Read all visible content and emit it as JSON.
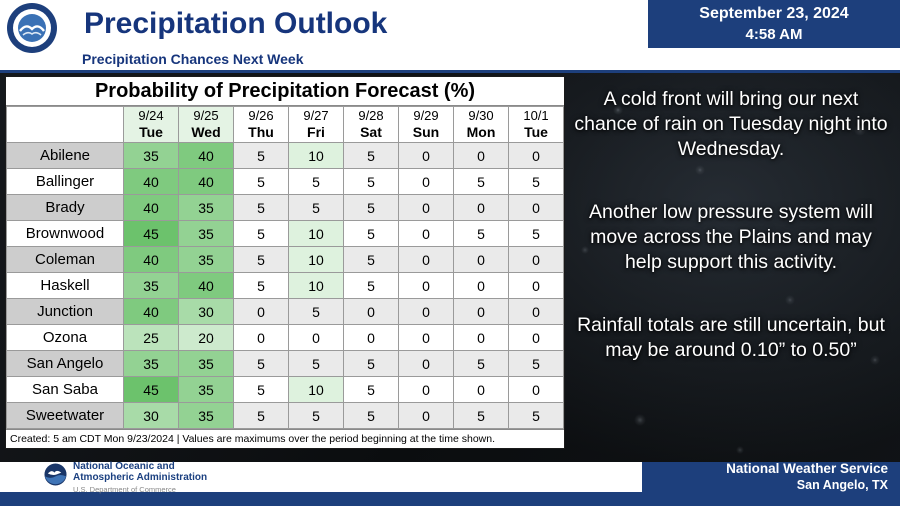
{
  "header": {
    "title": "Precipitation Outlook",
    "date": "September 23, 2024",
    "time": "4:58 AM",
    "subtitle": "Precipitation Chances Next Week"
  },
  "table": {
    "title": "Probability of Precipitation Forecast (%)",
    "columns": [
      {
        "date": "9/24",
        "day": "Tue",
        "highlight": true
      },
      {
        "date": "9/25",
        "day": "Wed",
        "highlight": true
      },
      {
        "date": "9/26",
        "day": "Thu",
        "highlight": false
      },
      {
        "date": "9/27",
        "day": "Fri",
        "highlight": false
      },
      {
        "date": "9/28",
        "day": "Sat",
        "highlight": false
      },
      {
        "date": "9/29",
        "day": "Sun",
        "highlight": false
      },
      {
        "date": "9/30",
        "day": "Mon",
        "highlight": false
      },
      {
        "date": "10/1",
        "day": "Tue",
        "highlight": false
      }
    ],
    "rows": [
      {
        "location": "Abilene",
        "values": [
          35,
          40,
          5,
          10,
          5,
          0,
          0,
          0
        ]
      },
      {
        "location": "Ballinger",
        "values": [
          40,
          40,
          5,
          5,
          5,
          0,
          5,
          5
        ]
      },
      {
        "location": "Brady",
        "values": [
          40,
          35,
          5,
          5,
          5,
          0,
          0,
          0
        ]
      },
      {
        "location": "Brownwood",
        "values": [
          45,
          35,
          5,
          10,
          5,
          0,
          5,
          5
        ]
      },
      {
        "location": "Coleman",
        "values": [
          40,
          35,
          5,
          10,
          5,
          0,
          0,
          0
        ]
      },
      {
        "location": "Haskell",
        "values": [
          35,
          40,
          5,
          10,
          5,
          0,
          0,
          0
        ]
      },
      {
        "location": "Junction",
        "values": [
          40,
          30,
          0,
          5,
          0,
          0,
          0,
          0
        ]
      },
      {
        "location": "Ozona",
        "values": [
          25,
          20,
          0,
          0,
          0,
          0,
          0,
          0
        ]
      },
      {
        "location": "San Angelo",
        "values": [
          35,
          35,
          5,
          5,
          5,
          0,
          5,
          5
        ]
      },
      {
        "location": "San Saba",
        "values": [
          45,
          35,
          5,
          10,
          5,
          0,
          0,
          0
        ]
      },
      {
        "location": "Sweetwater",
        "values": [
          30,
          35,
          5,
          5,
          5,
          0,
          5,
          5
        ]
      }
    ],
    "color_scale": {
      "45": "#6cc26c",
      "40": "#7fca7f",
      "35": "#93d293",
      "30": "#a8dba8",
      "25": "#bbe3bb",
      "20": "#cdeacd",
      "10": "#def2de",
      "5": "",
      "0": ""
    },
    "footnote": "Created: 5 am CDT Mon 9/23/2024  |  Values are maximums over the period beginning at the time shown."
  },
  "narrative": {
    "paragraphs": [
      "A cold front will bring our next chance of rain on Tuesday night into Wednesday.",
      "Another low pressure system will move across the Plains and may help support this activity.",
      "Rainfall totals are still uncertain, but may be around 0.10” to 0.50”"
    ]
  },
  "footer": {
    "noaa_line1": "National Oceanic and",
    "noaa_line2": "Atmospheric Administration",
    "noaa_line3": "U.S. Department of Commerce",
    "org": "National Weather Service",
    "office": "San Angelo, TX"
  },
  "colors": {
    "navy": "#1d3f7c",
    "title_blue": "#16357c",
    "noaa_blue": "#1b4080"
  }
}
